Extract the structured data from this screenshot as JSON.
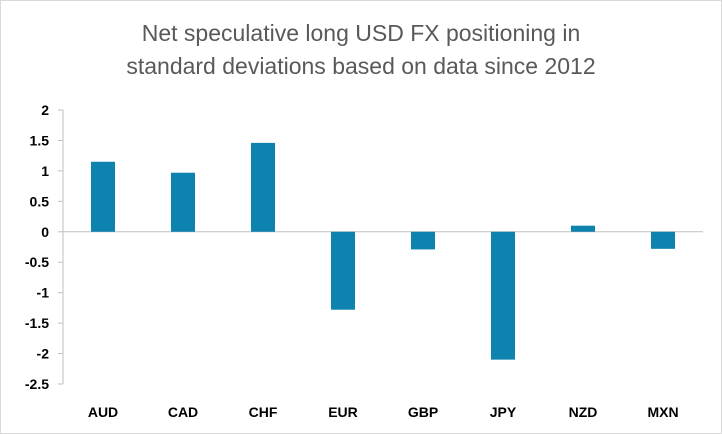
{
  "chart_data": {
    "type": "bar",
    "title_line1": "Net speculative long USD FX positioning in",
    "title_line2": "standard deviations based on data since 2012",
    "categories": [
      "AUD",
      "CAD",
      "CHF",
      "EUR",
      "GBP",
      "JPY",
      "NZD",
      "MXN"
    ],
    "values": [
      1.15,
      0.97,
      1.46,
      -1.28,
      -0.29,
      -2.1,
      0.1,
      -0.28
    ],
    "ylim": [
      -2.5,
      2
    ],
    "yticks": [
      "2",
      "1.5",
      "1",
      "0.5",
      "0",
      "-0.5",
      "-1",
      "-1.5",
      "-2",
      "-2.5"
    ],
    "bar_color": "#0e83b0",
    "grid": false,
    "legend": "none"
  }
}
